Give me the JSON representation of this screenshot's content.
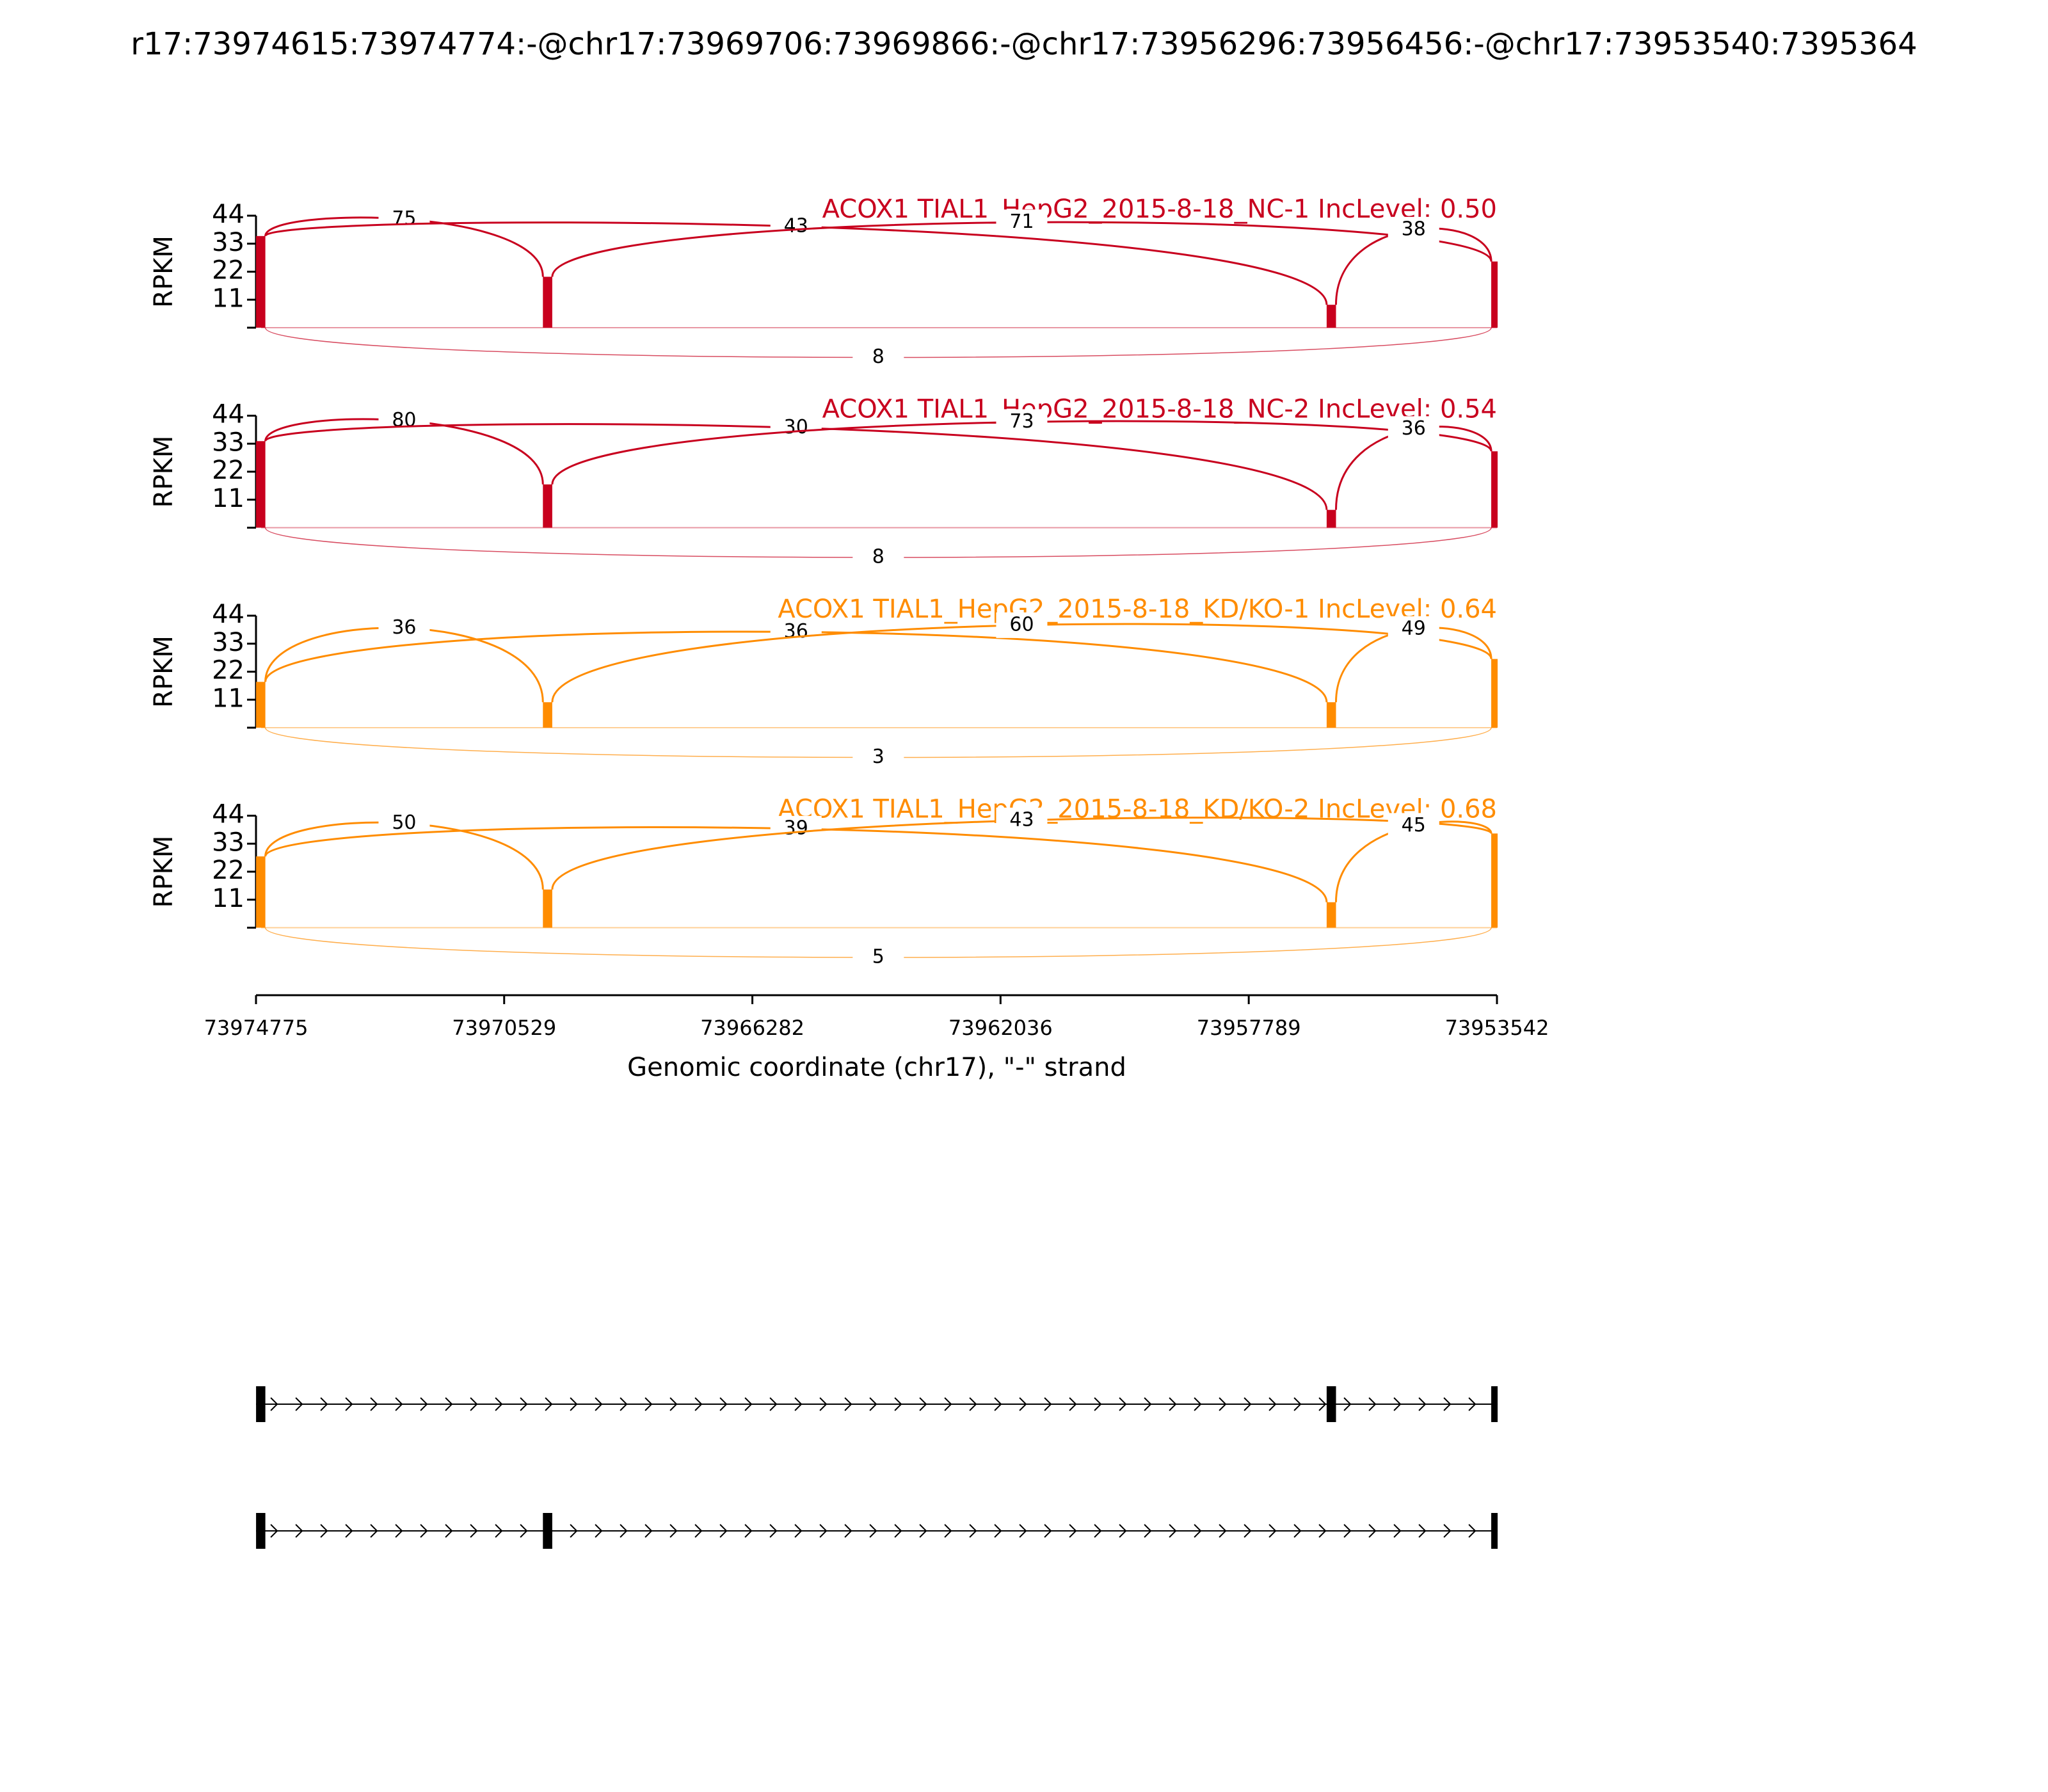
{
  "chart_data": {
    "type": "sashimi",
    "title": "r17:73974615:73974774:-@chr17:73969706:73969866:-@chr17:73956296:73956456:-@chr17:73953540:7395364",
    "xlabel": "Genomic coordinate (chr17), \"-\" strand",
    "ylabel": "RPKM",
    "xlim": [
      73974775,
      73953542
    ],
    "xticks": [
      73974775,
      73970529,
      73966282,
      73962036,
      73957789,
      73953542
    ],
    "ylim": [
      0,
      44
    ],
    "yticks": [
      11,
      22,
      33,
      44
    ],
    "exons": [
      [
        73974774,
        73974615
      ],
      [
        73969866,
        73969706
      ],
      [
        73956456,
        73956296
      ],
      [
        73953640,
        73953540
      ]
    ],
    "isoforms": [
      [
        0,
        2,
        3
      ],
      [
        0,
        1,
        3
      ]
    ],
    "panels": [
      {
        "name": "ACOX1 TIAL1_HepG2_2015-8-18_NC-1 IncLevel: 0.50",
        "color": "#c8001e",
        "coverage": [
          36,
          20,
          9,
          26
        ],
        "junctions": [
          {
            "from": 0,
            "to": 1,
            "count": 75,
            "position": "above"
          },
          {
            "from": 0,
            "to": 2,
            "count": 43,
            "position": "above"
          },
          {
            "from": 1,
            "to": 3,
            "count": 71,
            "position": "above"
          },
          {
            "from": 2,
            "to": 3,
            "count": 38,
            "position": "above"
          },
          {
            "from": 0,
            "to": 3,
            "count": 8,
            "position": "below"
          }
        ]
      },
      {
        "name": "ACOX1 TIAL1_HepG2_2015-8-18_NC-2 IncLevel: 0.54",
        "color": "#c8001e",
        "coverage": [
          34,
          17,
          7,
          30
        ],
        "junctions": [
          {
            "from": 0,
            "to": 1,
            "count": 80,
            "position": "above"
          },
          {
            "from": 0,
            "to": 2,
            "count": 30,
            "position": "above"
          },
          {
            "from": 1,
            "to": 3,
            "count": 73,
            "position": "above"
          },
          {
            "from": 2,
            "to": 3,
            "count": 36,
            "position": "above"
          },
          {
            "from": 0,
            "to": 3,
            "count": 8,
            "position": "below"
          }
        ]
      },
      {
        "name": "ACOX1 TIAL1_HepG2_2015-8-18_KD/KO-1 IncLevel: 0.64",
        "color": "#ff8c00",
        "coverage": [
          18,
          10,
          10,
          27
        ],
        "junctions": [
          {
            "from": 0,
            "to": 1,
            "count": 36,
            "position": "above"
          },
          {
            "from": 0,
            "to": 2,
            "count": 36,
            "position": "above"
          },
          {
            "from": 1,
            "to": 3,
            "count": 60,
            "position": "above"
          },
          {
            "from": 2,
            "to": 3,
            "count": 49,
            "position": "above"
          },
          {
            "from": 0,
            "to": 3,
            "count": 3,
            "position": "below"
          }
        ]
      },
      {
        "name": "ACOX1 TIAL1_HepG2_2015-8-18_KD/KO-2 IncLevel: 0.68",
        "color": "#ff8c00",
        "coverage": [
          28,
          15,
          10,
          37
        ],
        "junctions": [
          {
            "from": 0,
            "to": 1,
            "count": 50,
            "position": "above"
          },
          {
            "from": 0,
            "to": 2,
            "count": 39,
            "position": "above"
          },
          {
            "from": 1,
            "to": 3,
            "count": 43,
            "position": "above"
          },
          {
            "from": 2,
            "to": 3,
            "count": 45,
            "position": "above"
          },
          {
            "from": 0,
            "to": 3,
            "count": 5,
            "position": "below"
          }
        ]
      }
    ]
  }
}
